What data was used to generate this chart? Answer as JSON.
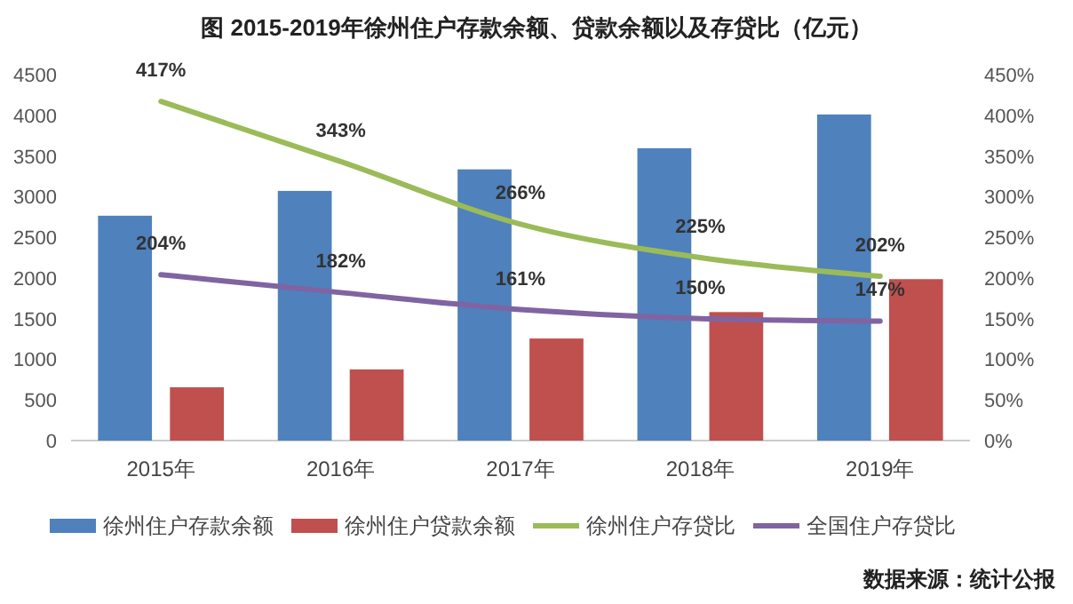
{
  "chart_data": {
    "type": "bar",
    "title": "图 2015-2019年徐州住户存款余额、贷款余额以及存贷比（亿元）",
    "categories": [
      "2015年",
      "2016年",
      "2017年",
      "2018年",
      "2019年"
    ],
    "series": [
      {
        "name": "徐州住户存款余额",
        "color": "#4f81bd",
        "values": [
          2765,
          3070,
          3335,
          3595,
          4010
        ]
      },
      {
        "name": "徐州住户贷款余额",
        "color": "#c0504d",
        "values": [
          655,
          875,
          1255,
          1580,
          1985
        ]
      },
      {
        "name": "徐州住户存贷比",
        "type": "line",
        "axis": "y2",
        "color": "#9bbb59",
        "values": [
          417,
          343,
          266,
          225,
          202
        ],
        "value_labels": [
          "417%",
          "343%",
          "266%",
          "225%",
          "202%"
        ]
      },
      {
        "name": "全国住户存贷比",
        "type": "line",
        "axis": "y2",
        "color": "#8064a2",
        "values": [
          204,
          182,
          161,
          150,
          147
        ],
        "value_labels": [
          "204%",
          "182%",
          "161%",
          "150%",
          "147%"
        ]
      }
    ],
    "ylim": [
      0,
      4500
    ],
    "yticks": [
      0,
      500,
      1000,
      1500,
      2000,
      2500,
      3000,
      3500,
      4000,
      4500
    ],
    "y2lim": [
      0,
      450
    ],
    "y2ticks": [
      {
        "value": 0,
        "label": "0%"
      },
      {
        "value": 50,
        "label": "50%"
      },
      {
        "value": 100,
        "label": "100%"
      },
      {
        "value": 150,
        "label": "150%"
      },
      {
        "value": 200,
        "label": "200%"
      },
      {
        "value": 250,
        "label": "250%"
      },
      {
        "value": 300,
        "label": "300%"
      },
      {
        "value": 350,
        "label": "350%"
      },
      {
        "value": 400,
        "label": "400%"
      },
      {
        "value": 450,
        "label": "450%"
      }
    ],
    "legend": "bottom",
    "annotations": [
      "数据来源：统计公报"
    ]
  }
}
